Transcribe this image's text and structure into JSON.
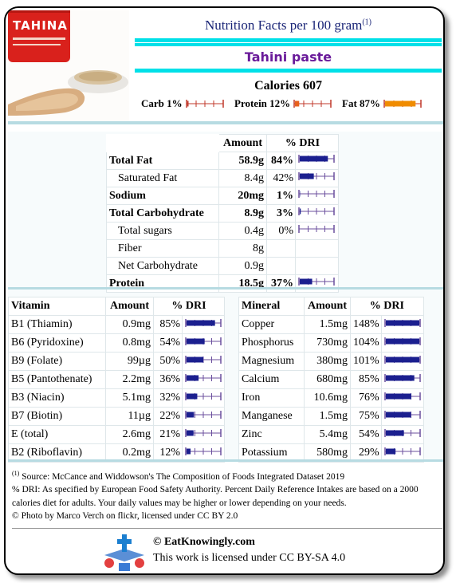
{
  "header": {
    "title": "Nutrition Facts per 100 gram",
    "title_sup": "(1)",
    "food_name": "Tahini paste",
    "calories": "Calories 607",
    "photo_label": "TAHINA",
    "macros": [
      {
        "label": "Carb 1%",
        "pct": 1,
        "color": "#c0392b"
      },
      {
        "label": "Protein 12%",
        "pct": 12,
        "color": "#e8601c"
      },
      {
        "label": "Fat 87%",
        "pct": 87,
        "color": "#f08c00"
      }
    ]
  },
  "main_table": {
    "headers": [
      "",
      "Amount",
      "% DRI"
    ],
    "rows": [
      {
        "name": "Total Fat",
        "amount": "58.9g",
        "pct": "84%",
        "pct_value": 84,
        "bold": true,
        "sub": false,
        "bar": true
      },
      {
        "name": "Saturated Fat",
        "amount": "8.4g",
        "pct": "42%",
        "pct_value": 42,
        "bold": false,
        "sub": true,
        "bar": true
      },
      {
        "name": "Sodium",
        "amount": "20mg",
        "pct": "1%",
        "pct_value": 1,
        "bold": true,
        "sub": false,
        "bar": true
      },
      {
        "name": "Total Carbohydrate",
        "amount": "8.9g",
        "pct": "3%",
        "pct_value": 3,
        "bold": true,
        "sub": false,
        "bar": true
      },
      {
        "name": "Total sugars",
        "amount": "0.4g",
        "pct": "0%",
        "pct_value": 0,
        "bold": false,
        "sub": true,
        "bar": true
      },
      {
        "name": "Fiber",
        "amount": "8g",
        "pct": "",
        "pct_value": null,
        "bold": false,
        "sub": true,
        "bar": false
      },
      {
        "name": "Net Carbohydrate",
        "amount": "0.9g",
        "pct": "",
        "pct_value": null,
        "bold": false,
        "sub": true,
        "bar": false
      },
      {
        "name": "Protein",
        "amount": "18.5g",
        "pct": "37%",
        "pct_value": 37,
        "bold": true,
        "sub": false,
        "bar": true
      }
    ]
  },
  "vitamins": {
    "headers": [
      "Vitamin",
      "Amount",
      "% DRI"
    ],
    "rows": [
      {
        "name": "B1 (Thiamin)",
        "amount": "0.9mg",
        "pct": "85%",
        "pct_value": 85
      },
      {
        "name": "B6 (Pyridoxine)",
        "amount": "0.8mg",
        "pct": "54%",
        "pct_value": 54
      },
      {
        "name": "B9 (Folate)",
        "amount": "99µg",
        "pct": "50%",
        "pct_value": 50
      },
      {
        "name": "B5 (Pantothenate)",
        "amount": "2.2mg",
        "pct": "36%",
        "pct_value": 36
      },
      {
        "name": "B3 (Niacin)",
        "amount": "5.1mg",
        "pct": "32%",
        "pct_value": 32
      },
      {
        "name": "B7 (Biotin)",
        "amount": "11µg",
        "pct": "22%",
        "pct_value": 22
      },
      {
        "name": "E (total)",
        "amount": "2.6mg",
        "pct": "21%",
        "pct_value": 21
      },
      {
        "name": "B2 (Riboflavin)",
        "amount": "0.2mg",
        "pct": "12%",
        "pct_value": 12
      }
    ]
  },
  "minerals": {
    "headers": [
      "Mineral",
      "Amount",
      "% DRI"
    ],
    "rows": [
      {
        "name": "Copper",
        "amount": "1.5mg",
        "pct": "148%",
        "pct_value": 148
      },
      {
        "name": "Phosphorus",
        "amount": "730mg",
        "pct": "104%",
        "pct_value": 104
      },
      {
        "name": "Magnesium",
        "amount": "380mg",
        "pct": "101%",
        "pct_value": 101
      },
      {
        "name": "Calcium",
        "amount": "680mg",
        "pct": "85%",
        "pct_value": 85
      },
      {
        "name": "Iron",
        "amount": "10.6mg",
        "pct": "76%",
        "pct_value": 76
      },
      {
        "name": "Manganese",
        "amount": "1.5mg",
        "pct": "75%",
        "pct_value": 75
      },
      {
        "name": "Zinc",
        "amount": "5.4mg",
        "pct": "54%",
        "pct_value": 54
      },
      {
        "name": "Potassium",
        "amount": "580mg",
        "pct": "29%",
        "pct_value": 29
      }
    ]
  },
  "footnotes": {
    "source_sup": "(1)",
    "source": " Source: McCance and Widdowson's The Composition of Foods Integrated Dataset 2019",
    "dri": "% DRI: As specified by European Food Safety Authority. Percent Daily Reference Intakes are based on a 2000 calories diet for adults. Your daily values may be higher or lower depending on your needs.",
    "photo": "© Photo by Marco Verch on flickr, licensed under CC BY 2.0"
  },
  "footer": {
    "brand": "© EatKnowingly.com",
    "license": "This work is licensed under CC BY-SA 4.0"
  },
  "colors": {
    "bar_fill": "#1b1f8f",
    "bar_frame": "#6b4f9e",
    "title_line": "#00e0e8",
    "separator": "#b7dbe2"
  }
}
